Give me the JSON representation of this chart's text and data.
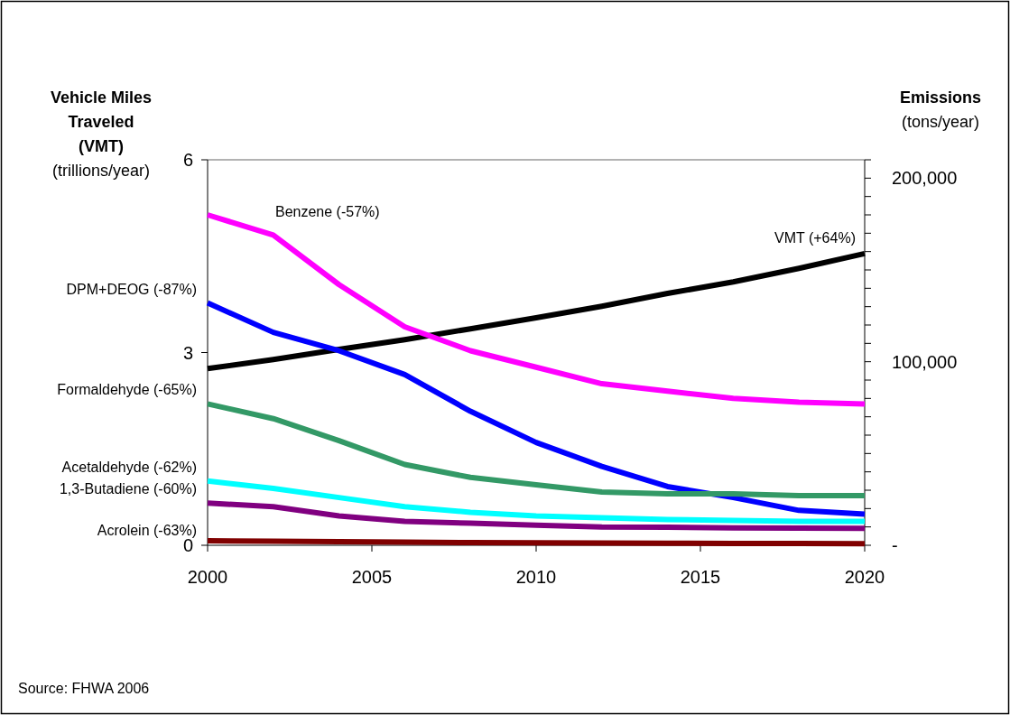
{
  "chart_data": {
    "type": "line",
    "ylabel": "Vehicle Miles\nTraveled\n(VMT)\n(trillions/year)",
    "y2label": "Emissions\n(tons/year)",
    "x": [
      2000,
      2002,
      2004,
      2006,
      2008,
      2010,
      2012,
      2014,
      2016,
      2018,
      2020
    ],
    "xlim": [
      2000,
      2020
    ],
    "xticks": [
      2000,
      2005,
      2010,
      2015,
      2020
    ],
    "ylim": [
      0,
      6
    ],
    "yticks": [
      0,
      3,
      6
    ],
    "y2lim": [
      0,
      210000
    ],
    "y2ticks": [
      {
        "value": 0,
        "label": "-"
      },
      {
        "value": 10000,
        "label": null
      },
      {
        "value": 20000,
        "label": null
      },
      {
        "value": 30000,
        "label": null
      },
      {
        "value": 40000,
        "label": null
      },
      {
        "value": 50000,
        "label": null
      },
      {
        "value": 60000,
        "label": null
      },
      {
        "value": 70000,
        "label": null
      },
      {
        "value": 80000,
        "label": null
      },
      {
        "value": 90000,
        "label": null
      },
      {
        "value": 100000,
        "label": "100,000"
      },
      {
        "value": 110000,
        "label": null
      },
      {
        "value": 120000,
        "label": null
      },
      {
        "value": 130000,
        "label": null
      },
      {
        "value": 140000,
        "label": null
      },
      {
        "value": 150000,
        "label": null
      },
      {
        "value": 160000,
        "label": null
      },
      {
        "value": 170000,
        "label": null
      },
      {
        "value": 180000,
        "label": null
      },
      {
        "value": 190000,
        "label": null
      },
      {
        "value": 200000,
        "label": "200,000"
      },
      {
        "value": 210000,
        "label": null
      }
    ],
    "series": [
      {
        "name": "VMT (+64%)",
        "color": "#000000",
        "values": [
          2.75,
          2.89,
          3.05,
          3.2,
          3.37,
          3.54,
          3.72,
          3.92,
          4.1,
          4.31,
          4.54
        ]
      },
      {
        "name": "Benzene (-57%)",
        "color": "#ff00ff",
        "axis": "y2",
        "values": [
          180000,
          169000,
          142000,
          119000,
          106000,
          97000,
          88000,
          84000,
          80000,
          78000,
          77000
        ]
      },
      {
        "name": "DPM+DEOG (-87%)",
        "color": "#0000ff",
        "axis": "y2",
        "values": [
          132000,
          116000,
          106000,
          93000,
          73000,
          56000,
          43000,
          32000,
          26000,
          19000,
          17000
        ]
      },
      {
        "name": "Formaldehyde (-65%)",
        "color": "#339966",
        "axis": "y2",
        "values": [
          77000,
          69000,
          57000,
          44000,
          37000,
          33000,
          29000,
          28000,
          28000,
          27000,
          27000
        ]
      },
      {
        "name": "Acetaldehyde (-62%)",
        "color": "#00ffff",
        "axis": "y2",
        "values": [
          35000,
          31000,
          26000,
          21000,
          18000,
          16000,
          15000,
          14000,
          13500,
          13000,
          13000
        ]
      },
      {
        "name": "1,3-Butadiene (-60%)",
        "color": "#800080",
        "axis": "y2",
        "values": [
          23000,
          21000,
          16000,
          13000,
          12000,
          11000,
          10000,
          9800,
          9500,
          9300,
          9200
        ]
      },
      {
        "name": "Acrolein (-63%)",
        "color": "#800000",
        "axis": "y2",
        "values": [
          2400,
          2200,
          2000,
          1700,
          1500,
          1400,
          1200,
          1100,
          1000,
          950,
          900
        ]
      }
    ],
    "legend": false,
    "grid": false,
    "marker": "none",
    "line_style": "solid",
    "annotations": [
      "Source: FHWA 2006"
    ]
  }
}
